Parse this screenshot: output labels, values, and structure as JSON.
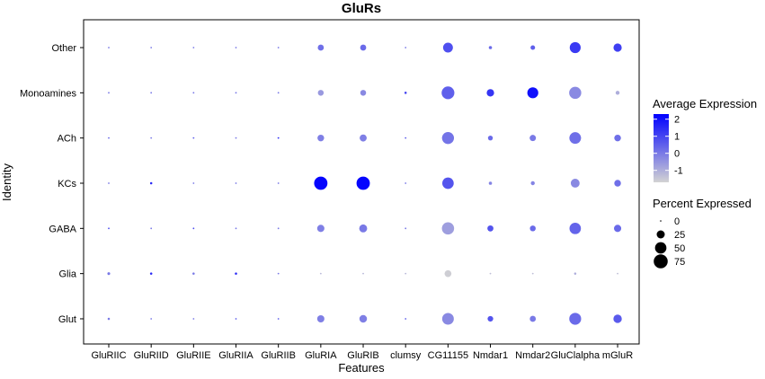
{
  "chart_data": {
    "type": "dotplot",
    "title": "GluRs",
    "xlabel": "Features",
    "ylabel": "Identity",
    "features": [
      "GluRIIC",
      "GluRIID",
      "GluRIIE",
      "GluRIIA",
      "GluRIIB",
      "GluRIA",
      "GluRIB",
      "clumsy",
      "CG11155",
      "Nmdar1",
      "Nmdar2",
      "GluClalpha",
      "mGluR"
    ],
    "identities": [
      "Other",
      "Monoamines",
      "ACh",
      "KCs",
      "GABA",
      "Glia",
      "Glut"
    ],
    "color_legend": {
      "title": "Average Expression",
      "ticks": [
        2,
        1,
        0,
        -1
      ],
      "range": [
        -1.7,
        2.3
      ],
      "low_color": "#d3d3d3",
      "high_color": "#0000ff"
    },
    "size_legend": {
      "title": "Percent Expressed",
      "ticks": [
        0,
        25,
        50,
        75
      ]
    },
    "grid": false,
    "legend_position": "right",
    "points": [
      {
        "identity": "Other",
        "values": [
          {
            "feature": "GluRIIC",
            "avg_exp": 0.0,
            "pct": 1
          },
          {
            "feature": "GluRIID",
            "avg_exp": 0.0,
            "pct": 1
          },
          {
            "feature": "GluRIIE",
            "avg_exp": 0.0,
            "pct": 1
          },
          {
            "feature": "GluRIIA",
            "avg_exp": 0.0,
            "pct": 1
          },
          {
            "feature": "GluRIIB",
            "avg_exp": 0.0,
            "pct": 1
          },
          {
            "feature": "GluRIA",
            "avg_exp": 0.2,
            "pct": 14
          },
          {
            "feature": "GluRIB",
            "avg_exp": 0.3,
            "pct": 14
          },
          {
            "feature": "clumsy",
            "avg_exp": 0.0,
            "pct": 1
          },
          {
            "feature": "CG11155",
            "avg_exp": 0.8,
            "pct": 37
          },
          {
            "feature": "Nmdar1",
            "avg_exp": 0.3,
            "pct": 4
          },
          {
            "feature": "Nmdar2",
            "avg_exp": 0.5,
            "pct": 8
          },
          {
            "feature": "GluClalpha",
            "avg_exp": 1.2,
            "pct": 46
          },
          {
            "feature": "mGluR",
            "avg_exp": 1.1,
            "pct": 26
          }
        ]
      },
      {
        "identity": "Monoamines",
        "values": [
          {
            "feature": "GluRIIC",
            "avg_exp": 0.0,
            "pct": 1
          },
          {
            "feature": "GluRIID",
            "avg_exp": 0.0,
            "pct": 1
          },
          {
            "feature": "GluRIIE",
            "avg_exp": 0.0,
            "pct": 1
          },
          {
            "feature": "GluRIIA",
            "avg_exp": 0.0,
            "pct": 1
          },
          {
            "feature": "GluRIIB",
            "avg_exp": 0.0,
            "pct": 1
          },
          {
            "feature": "GluRIA",
            "avg_exp": -0.6,
            "pct": 13
          },
          {
            "feature": "GluRIB",
            "avg_exp": -0.3,
            "pct": 13
          },
          {
            "feature": "clumsy",
            "avg_exp": 1.0,
            "pct": 2
          },
          {
            "feature": "CG11155",
            "avg_exp": 0.5,
            "pct": 62
          },
          {
            "feature": "Nmdar1",
            "avg_exp": 1.3,
            "pct": 21
          },
          {
            "feature": "Nmdar2",
            "avg_exp": 2.0,
            "pct": 46
          },
          {
            "feature": "GluClalpha",
            "avg_exp": -0.3,
            "pct": 56
          },
          {
            "feature": "mGluR",
            "avg_exp": -1.0,
            "pct": 6
          }
        ]
      },
      {
        "identity": "ACh",
        "values": [
          {
            "feature": "GluRIIC",
            "avg_exp": 0.3,
            "pct": 1
          },
          {
            "feature": "GluRIID",
            "avg_exp": 0.0,
            "pct": 1
          },
          {
            "feature": "GluRIIE",
            "avg_exp": 0.5,
            "pct": 1
          },
          {
            "feature": "GluRIIA",
            "avg_exp": 0.0,
            "pct": 1
          },
          {
            "feature": "GluRIIB",
            "avg_exp": 1.5,
            "pct": 1
          },
          {
            "feature": "GluRIA",
            "avg_exp": -0.1,
            "pct": 17
          },
          {
            "feature": "GluRIB",
            "avg_exp": -0.1,
            "pct": 19
          },
          {
            "feature": "clumsy",
            "avg_exp": 0.5,
            "pct": 1
          },
          {
            "feature": "CG11155",
            "avg_exp": 0.1,
            "pct": 55
          },
          {
            "feature": "Nmdar1",
            "avg_exp": 0.3,
            "pct": 9
          },
          {
            "feature": "Nmdar2",
            "avg_exp": 0.0,
            "pct": 15
          },
          {
            "feature": "GluClalpha",
            "avg_exp": 0.2,
            "pct": 52
          },
          {
            "feature": "mGluR",
            "avg_exp": 0.2,
            "pct": 17
          }
        ]
      },
      {
        "identity": "KCs",
        "values": [
          {
            "feature": "GluRIIC",
            "avg_exp": 0.0,
            "pct": 1
          },
          {
            "feature": "GluRIID",
            "avg_exp": 1.5,
            "pct": 2
          },
          {
            "feature": "GluRIIE",
            "avg_exp": 0.0,
            "pct": 1
          },
          {
            "feature": "GluRIIA",
            "avg_exp": 0.0,
            "pct": 1
          },
          {
            "feature": "GluRIIB",
            "avg_exp": 0.0,
            "pct": 1
          },
          {
            "feature": "GluRIA",
            "avg_exp": 2.2,
            "pct": 68
          },
          {
            "feature": "GluRIB",
            "avg_exp": 2.2,
            "pct": 68
          },
          {
            "feature": "clumsy",
            "avg_exp": 0.0,
            "pct": 1
          },
          {
            "feature": "CG11155",
            "avg_exp": 0.7,
            "pct": 50
          },
          {
            "feature": "Nmdar1",
            "avg_exp": -0.2,
            "pct": 4
          },
          {
            "feature": "Nmdar2",
            "avg_exp": -0.2,
            "pct": 6
          },
          {
            "feature": "GluClalpha",
            "avg_exp": -0.3,
            "pct": 30
          },
          {
            "feature": "mGluR",
            "avg_exp": 0.2,
            "pct": 17
          }
        ]
      },
      {
        "identity": "GABA",
        "values": [
          {
            "feature": "GluRIIC",
            "avg_exp": 0.8,
            "pct": 1
          },
          {
            "feature": "GluRIID",
            "avg_exp": 0.0,
            "pct": 1
          },
          {
            "feature": "GluRIIE",
            "avg_exp": 0.8,
            "pct": 1
          },
          {
            "feature": "GluRIIA",
            "avg_exp": 0.0,
            "pct": 1
          },
          {
            "feature": "GluRIIB",
            "avg_exp": 0.0,
            "pct": 1
          },
          {
            "feature": "GluRIA",
            "avg_exp": -0.1,
            "pct": 20
          },
          {
            "feature": "GluRIB",
            "avg_exp": 0.0,
            "pct": 24
          },
          {
            "feature": "clumsy",
            "avg_exp": 0.0,
            "pct": 1
          },
          {
            "feature": "CG11155",
            "avg_exp": -0.7,
            "pct": 57
          },
          {
            "feature": "Nmdar1",
            "avg_exp": 0.7,
            "pct": 14
          },
          {
            "feature": "Nmdar2",
            "avg_exp": 0.3,
            "pct": 13
          },
          {
            "feature": "GluClalpha",
            "avg_exp": 0.4,
            "pct": 50
          },
          {
            "feature": "mGluR",
            "avg_exp": 0.3,
            "pct": 20
          }
        ]
      },
      {
        "identity": "Glia",
        "values": [
          {
            "feature": "GluRIIC",
            "avg_exp": 0.0,
            "pct": 3
          },
          {
            "feature": "GluRIID",
            "avg_exp": 1.5,
            "pct": 2
          },
          {
            "feature": "GluRIIE",
            "avg_exp": 0.0,
            "pct": 2
          },
          {
            "feature": "GluRIIA",
            "avg_exp": 1.5,
            "pct": 2
          },
          {
            "feature": "GluRIIB",
            "avg_exp": 0.0,
            "pct": 1
          },
          {
            "feature": "GluRIA",
            "avg_exp": -1.2,
            "pct": 1
          },
          {
            "feature": "GluRIB",
            "avg_exp": -1.2,
            "pct": 1
          },
          {
            "feature": "clumsy",
            "avg_exp": -1.2,
            "pct": 1
          },
          {
            "feature": "CG11155",
            "avg_exp": -1.6,
            "pct": 18
          },
          {
            "feature": "Nmdar1",
            "avg_exp": -1.3,
            "pct": 1
          },
          {
            "feature": "Nmdar2",
            "avg_exp": -1.3,
            "pct": 1
          },
          {
            "feature": "GluClalpha",
            "avg_exp": -1.0,
            "pct": 2
          },
          {
            "feature": "mGluR",
            "avg_exp": -1.3,
            "pct": 1
          }
        ]
      },
      {
        "identity": "Glut",
        "values": [
          {
            "feature": "GluRIIC",
            "avg_exp": 0.0,
            "pct": 2
          },
          {
            "feature": "GluRIID",
            "avg_exp": 0.0,
            "pct": 1
          },
          {
            "feature": "GluRIIE",
            "avg_exp": 0.0,
            "pct": 1
          },
          {
            "feature": "GluRIIA",
            "avg_exp": 0.5,
            "pct": 1
          },
          {
            "feature": "GluRIIB",
            "avg_exp": 0.5,
            "pct": 1
          },
          {
            "feature": "GluRIA",
            "avg_exp": -0.1,
            "pct": 20
          },
          {
            "feature": "GluRIB",
            "avg_exp": -0.1,
            "pct": 22
          },
          {
            "feature": "clumsy",
            "avg_exp": 0.5,
            "pct": 1
          },
          {
            "feature": "CG11155",
            "avg_exp": -0.3,
            "pct": 52
          },
          {
            "feature": "Nmdar1",
            "avg_exp": 0.7,
            "pct": 12
          },
          {
            "feature": "Nmdar2",
            "avg_exp": 0.0,
            "pct": 14
          },
          {
            "feature": "GluClalpha",
            "avg_exp": 0.3,
            "pct": 54
          },
          {
            "feature": "mGluR",
            "avg_exp": 0.6,
            "pct": 27
          }
        ]
      }
    ]
  }
}
